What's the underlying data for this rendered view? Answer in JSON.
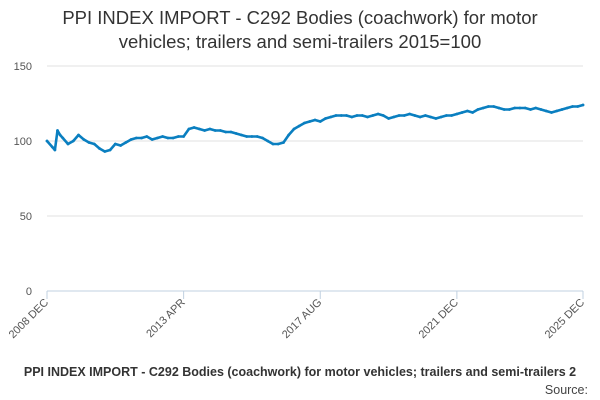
{
  "chart_data": {
    "type": "line",
    "title_lines": [
      "PPI INDEX IMPORT - C292 Bodies (coachwork) for motor",
      "vehicles; trailers and semi-trailers 2015=100"
    ],
    "xlabel": "",
    "ylabel": "",
    "ylim": [
      0,
      150
    ],
    "yticks": [
      0,
      50,
      100,
      150
    ],
    "grid": true,
    "legend_position": "bottom",
    "xtick_labels": [
      "2008 DEC",
      "2013 APR",
      "2017 AUG",
      "2021 DEC",
      "2025 DEC"
    ],
    "xtick_month_index": [
      0,
      52,
      104,
      156,
      204
    ],
    "series": [
      {
        "name": "PPI INDEX IMPORT - C292 Bodies (coachwork) for motor vehicles; trailers and semi-trailers 2",
        "color": "#0a7fc0",
        "x": [
          0,
          2,
          3,
          4,
          5,
          6,
          8,
          10,
          12,
          14,
          16,
          18,
          20,
          22,
          24,
          26,
          28,
          30,
          32,
          34,
          36,
          38,
          40,
          42,
          44,
          46,
          48,
          50,
          52,
          54,
          56,
          58,
          60,
          62,
          64,
          66,
          68,
          70,
          72,
          74,
          76,
          78,
          80,
          82,
          84,
          86,
          88,
          90,
          92,
          94,
          96,
          98,
          100,
          102,
          104,
          106,
          108,
          110,
          112,
          114,
          116,
          118,
          120,
          122,
          124,
          126,
          128,
          130,
          132,
          134,
          136,
          138,
          140,
          142,
          144,
          146,
          148,
          150,
          152,
          154,
          156,
          158,
          160,
          162,
          164,
          166,
          168,
          170,
          172,
          174,
          176,
          178,
          180,
          182,
          184,
          186,
          188,
          190,
          192,
          194,
          196,
          198,
          200,
          202,
          204
        ],
        "values": [
          100,
          96,
          94,
          107,
          104,
          102,
          98,
          100,
          104,
          101,
          99,
          98,
          95,
          93,
          94,
          98,
          97,
          99,
          101,
          102,
          102,
          103,
          101,
          102,
          103,
          102,
          102,
          103,
          103,
          108,
          109,
          108,
          107,
          108,
          107,
          107,
          106,
          106,
          105,
          104,
          103,
          103,
          103,
          102,
          100,
          98,
          98,
          99,
          104,
          108,
          110,
          112,
          113,
          114,
          113,
          115,
          116,
          117,
          117,
          117,
          116,
          117,
          117,
          116,
          117,
          118,
          117,
          115,
          116,
          117,
          117,
          118,
          117,
          116,
          117,
          116,
          115,
          116,
          117,
          117,
          118,
          119,
          120,
          119,
          121,
          122,
          123,
          123,
          122,
          121,
          121,
          122,
          122,
          122,
          121,
          122,
          121,
          120,
          119,
          120,
          121,
          122,
          123,
          123,
          124
        ]
      }
    ]
  },
  "legend": {
    "series_label": "PPI INDEX IMPORT - C292 Bodies (coachwork) for motor vehicles; trailers and semi-trailers 2",
    "source_label": "Source:"
  }
}
